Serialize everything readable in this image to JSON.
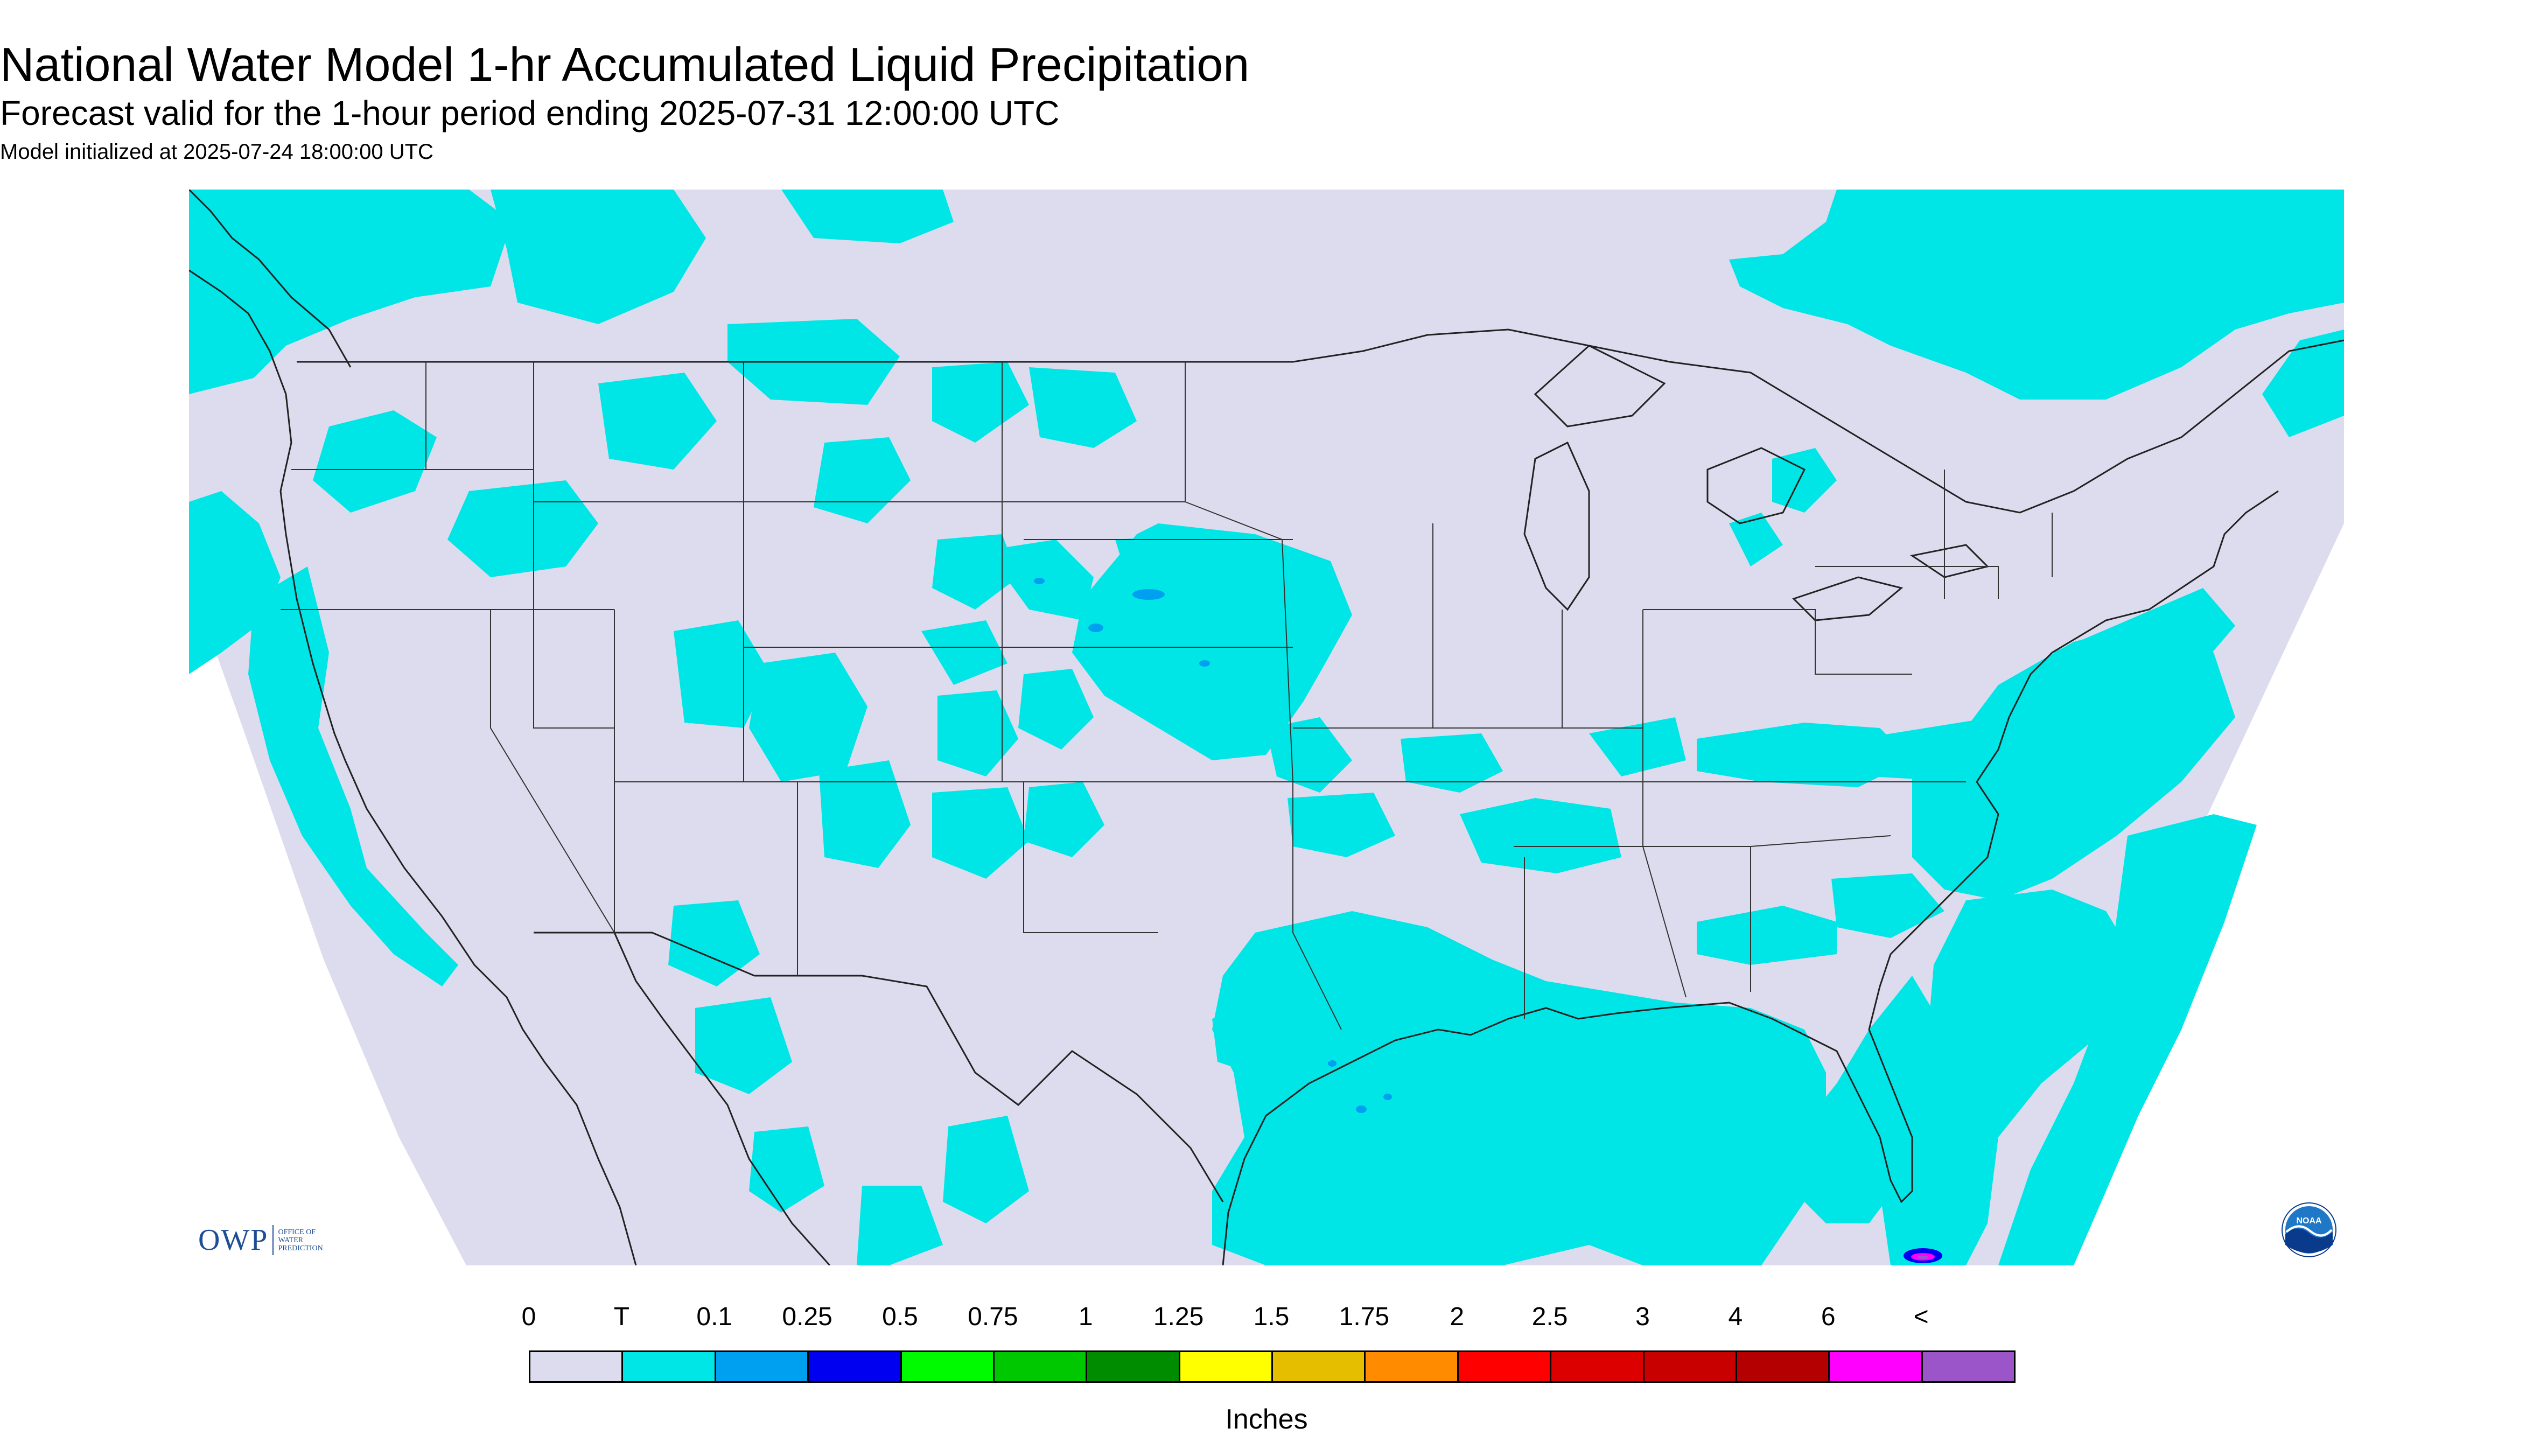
{
  "title": "National Water Model 1-hr Accumulated Liquid Precipitation",
  "subtitle": "Forecast valid for the 1-hour period ending 2025-07-31 12:00:00 UTC",
  "initialized": "Model initialized at 2025-07-24 18:00:00 UTC",
  "legend": {
    "ticks": [
      "0",
      "T",
      "0.1",
      "0.25",
      "0.5",
      "0.75",
      "1",
      "1.25",
      "1.5",
      "1.75",
      "2",
      "2.5",
      "3",
      "4",
      "6",
      "<"
    ],
    "colors": [
      "#dcdcee",
      "#00e6e6",
      "#00a0f0",
      "#0000f0",
      "#00fa00",
      "#00c800",
      "#008c00",
      "#ffff00",
      "#e6be00",
      "#ff8c00",
      "#ff0000",
      "#dc0000",
      "#c80000",
      "#b40000",
      "#ff00ff",
      "#9b55c8"
    ],
    "units": "Inches"
  },
  "logos": {
    "owp_mark": "OWP",
    "owp_text": [
      "OFFICE OF",
      "WATER",
      "PREDICTION"
    ],
    "noaa_text": "NOAA"
  },
  "map_colors": {
    "background": "#dcdcee",
    "trace": "#00e6e6",
    "light": "#00a0f0",
    "outside": "#ffffff",
    "borders": "#222222"
  }
}
